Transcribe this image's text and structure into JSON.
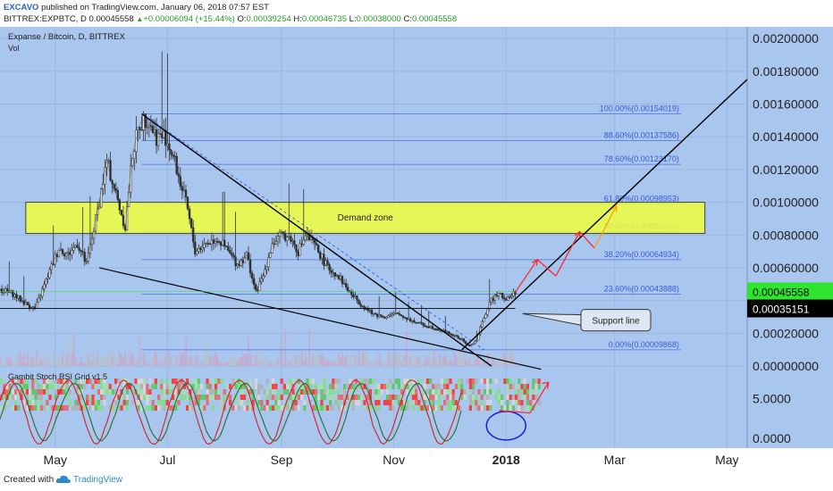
{
  "header": {
    "author": "EXCAVO",
    "published": "published on TradingView.com, January 06, 2018 07:57 EST",
    "symbol": "BITTREX:EXPBTC, D",
    "last": "0.00045558",
    "change": "+0.00006094 (+15.44%)",
    "open_label": "O:",
    "open": "0.00039254",
    "high_label": "H:",
    "high": "0.00046735",
    "low_label": "L:",
    "low": "0.00038000",
    "close_label": "C:",
    "close": "0.00045558"
  },
  "colors": {
    "up": "#4a4a4a",
    "down": "#2c2c2c",
    "fib": "#4f6fe0",
    "demand": "#f0ff3c",
    "stoch": "#b5c7d6",
    "price_label": "#2ee62e"
  },
  "chart_data": [
    {
      "type": "line",
      "title": "Expanse / Bitcoin, D, BITTREX",
      "volume_label": "Vol",
      "y_ticks": [
        0.002,
        0.0018,
        0.0016,
        0.0014,
        0.0012,
        0.001,
        0.0008,
        0.0006,
        0.0004,
        0.0002,
        0
      ],
      "y_tick_labels": [
        "0.00200000",
        "0.00180000",
        "0.00160000",
        "0.00140000",
        "0.00120000",
        "0.00100000",
        "0.00080000",
        "0.00060000",
        "0.00040000",
        "0.00020000",
        "0.00000000"
      ],
      "ylim": [
        0,
        0.00205
      ],
      "x_tick_labels": [
        "May",
        "Jul",
        "Sep",
        "Nov",
        "2018",
        "Mar",
        "May"
      ],
      "x_tick_dates": [
        "2017-05-01",
        "2017-07-01",
        "2017-09-01",
        "2017-11-01",
        "2018-01-01",
        "2018-03-01",
        "2018-05-01"
      ],
      "xlim": [
        "2017-04-01",
        "2018-05-12"
      ],
      "series": [
        {
          "values_by_date": [
            [
              "2017-04-01",
              0.00047
            ],
            [
              "2017-04-08",
              0.00044
            ],
            [
              "2017-04-15",
              0.00038
            ],
            [
              "2017-04-20",
              0.00035
            ],
            [
              "2017-04-27",
              0.00055
            ],
            [
              "2017-05-03",
              0.00072
            ],
            [
              "2017-05-08",
              0.00068
            ],
            [
              "2017-05-13",
              0.00075
            ],
            [
              "2017-05-18",
              0.00062
            ],
            [
              "2017-05-24",
              0.00095
            ],
            [
              "2017-05-29",
              0.00125
            ],
            [
              "2017-06-03",
              0.00105
            ],
            [
              "2017-06-08",
              0.00085
            ],
            [
              "2017-06-12",
              0.0013
            ],
            [
              "2017-06-16",
              0.00148
            ],
            [
              "2017-06-20",
              0.00152
            ],
            [
              "2017-06-25",
              0.0014
            ],
            [
              "2017-06-30",
              0.0014
            ],
            [
              "2017-07-04",
              0.00128
            ],
            [
              "2017-07-08",
              0.00112
            ],
            [
              "2017-07-12",
              0.00095
            ],
            [
              "2017-07-16",
              0.0007
            ],
            [
              "2017-07-22",
              0.00075
            ],
            [
              "2017-07-28",
              0.00078
            ],
            [
              "2017-08-03",
              0.0007
            ],
            [
              "2017-08-08",
              0.00062
            ],
            [
              "2017-08-13",
              0.00068
            ],
            [
              "2017-08-18",
              0.00045
            ],
            [
              "2017-08-22",
              0.00055
            ],
            [
              "2017-08-27",
              0.00075
            ],
            [
              "2017-09-02",
              0.0008
            ],
            [
              "2017-09-06",
              0.00078
            ],
            [
              "2017-09-10",
              0.0007
            ],
            [
              "2017-09-14",
              0.0008
            ],
            [
              "2017-09-20",
              0.00072
            ],
            [
              "2017-09-26",
              0.0006
            ],
            [
              "2017-10-02",
              0.00055
            ],
            [
              "2017-10-08",
              0.00045
            ],
            [
              "2017-10-14",
              0.00038
            ],
            [
              "2017-10-20",
              0.00032
            ],
            [
              "2017-10-27",
              0.0003
            ],
            [
              "2017-11-03",
              0.00032
            ],
            [
              "2017-11-10",
              0.00028
            ],
            [
              "2017-11-17",
              0.00025
            ],
            [
              "2017-11-24",
              0.00023
            ],
            [
              "2017-12-01",
              0.0002
            ],
            [
              "2017-12-08",
              0.00016
            ],
            [
              "2017-12-12",
              0.00012
            ],
            [
              "2017-12-16",
              0.00016
            ],
            [
              "2017-12-20",
              0.0003
            ],
            [
              "2017-12-24",
              0.0004
            ],
            [
              "2017-12-28",
              0.00046
            ],
            [
              "2018-01-01",
              0.0004
            ],
            [
              "2018-01-06",
              0.00045558
            ]
          ]
        }
      ],
      "fib_levels": [
        {
          "label": "100.00%(0.00154019)",
          "value": 0.00154019
        },
        {
          "label": "88.60%(0.00137586)",
          "value": 0.00137586
        },
        {
          "label": "78.60%(0.00123170)",
          "value": 0.0012317
        },
        {
          "label": "61.80%(0.00098953)",
          "value": 0.00098953
        },
        {
          "label": "50.00%(0.00081943)",
          "value": 0.00081943
        },
        {
          "label": "38.20%(0.00064934)",
          "value": 0.00064934
        },
        {
          "label": "23.60%(0.00043888)",
          "value": 0.00043888
        },
        {
          "label": "0.00%(0.00009868)",
          "value": 9.868e-05
        }
      ],
      "demand_zone": {
        "label": "Demand zone",
        "from": 0.00081,
        "to": 0.001
      },
      "current_price_label": "0.00045558",
      "support_price_label": "0.00035151",
      "callout_label": "Support line"
    },
    {
      "type": "line",
      "title": "Gambit Stoch RSI Grid v1.5",
      "y_ticks": [
        5,
        0
      ],
      "y_tick_labels": [
        "5.0000",
        "0.0000"
      ],
      "ylim": [
        -1.2,
        8.5
      ]
    }
  ]
}
